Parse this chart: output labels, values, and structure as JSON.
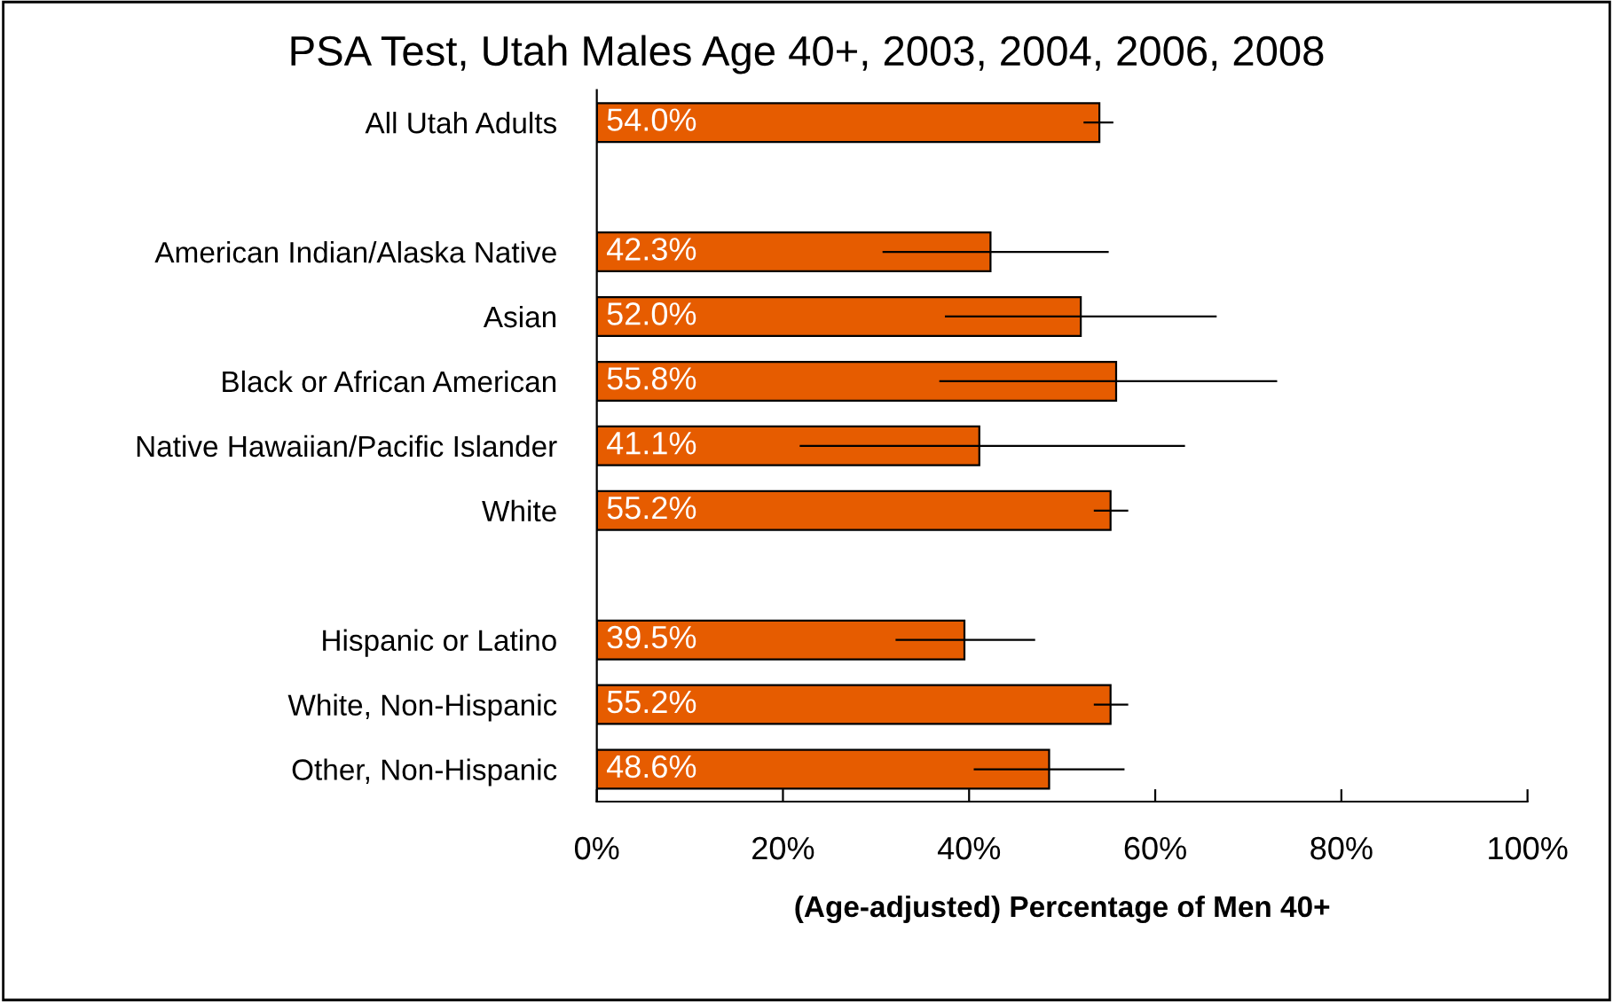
{
  "chart_data": {
    "type": "bar",
    "orientation": "horizontal",
    "title": "PSA Test, Utah Males Age 40+, 2003, 2004, 2006, 2008",
    "xlabel": "(Age-adjusted) Percentage of Men 40+",
    "categories": [
      "All Utah Adults",
      null,
      "American Indian/Alaska Native",
      "Asian",
      "Black or African American",
      "Native Hawaiian/Pacific Islander",
      "White",
      null,
      "Hispanic or Latino",
      "White, Non-Hispanic",
      "Other, Non-Hispanic"
    ],
    "values": [
      54.0,
      null,
      42.3,
      52.0,
      55.8,
      41.1,
      55.2,
      null,
      39.5,
      55.2,
      48.6
    ],
    "value_labels": [
      "54.0%",
      null,
      "42.3%",
      "52.0%",
      "55.8%",
      "41.1%",
      "55.2%",
      null,
      "39.5%",
      "55.2%",
      "48.6%"
    ],
    "errors": [
      [
        52.3,
        55.5
      ],
      null,
      [
        30.7,
        55.0
      ],
      [
        37.4,
        66.6
      ],
      [
        36.8,
        73.1
      ],
      [
        21.8,
        63.2
      ],
      [
        53.4,
        57.1
      ],
      null,
      [
        32.1,
        47.1
      ],
      [
        53.4,
        57.1
      ],
      [
        40.5,
        56.7
      ]
    ],
    "color": "#e65c00",
    "xlim": [
      0,
      100
    ],
    "xticks": [
      {
        "value": 0,
        "label": "0%"
      },
      {
        "value": 20,
        "label": "20%"
      },
      {
        "value": 40,
        "label": "40%"
      },
      {
        "value": 60,
        "label": "60%"
      },
      {
        "value": 80,
        "label": "80%"
      },
      {
        "value": 100,
        "label": "100%"
      }
    ],
    "grid": false,
    "legend": false
  }
}
